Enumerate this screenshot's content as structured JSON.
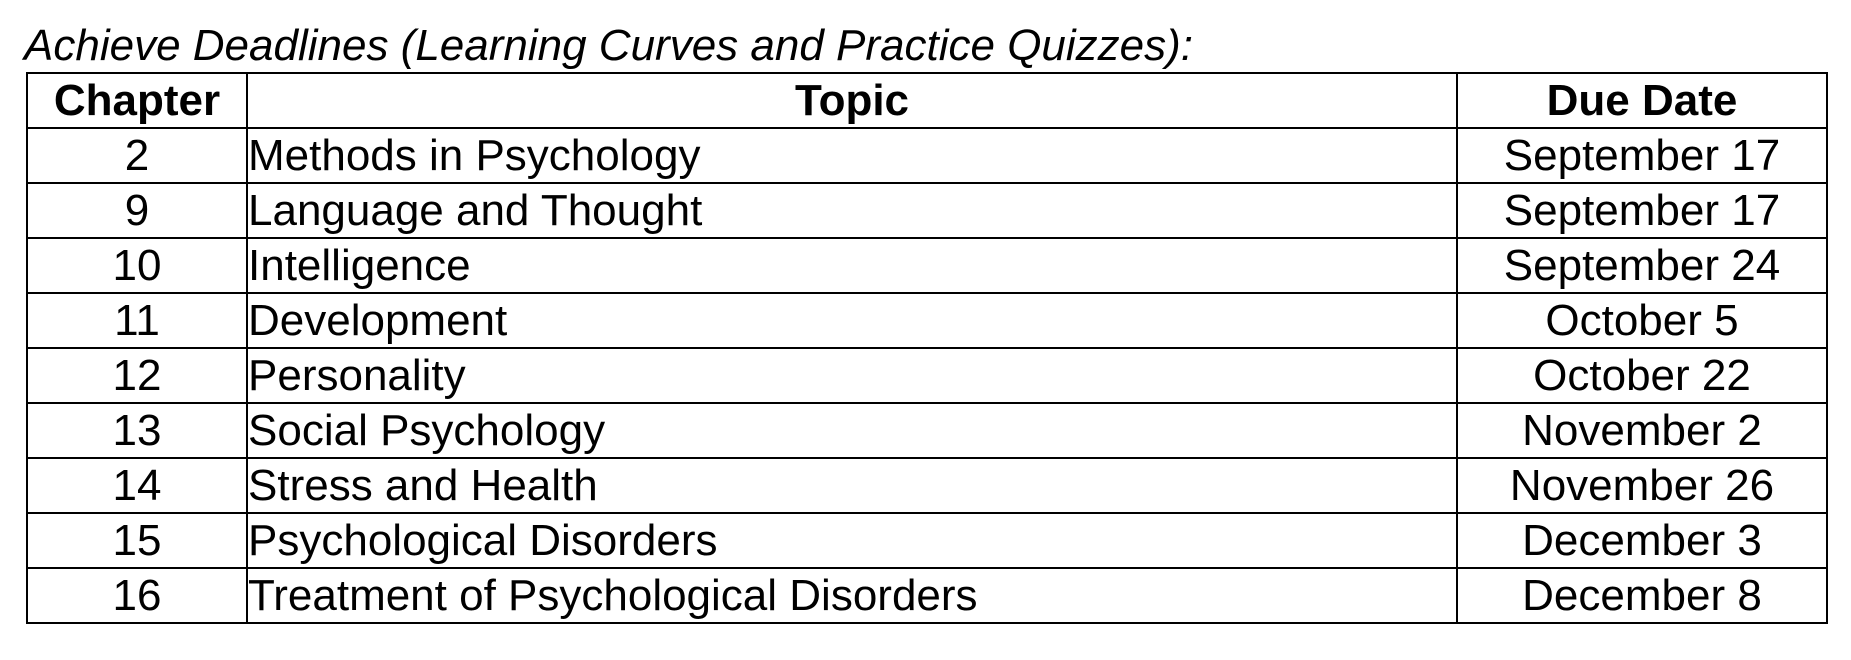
{
  "document": {
    "title": "Achieve Deadlines (Learning Curves and Practice Quizzes):"
  },
  "table": {
    "headers": {
      "chapter": "Chapter",
      "topic": "Topic",
      "due_date": "Due Date"
    },
    "rows": [
      {
        "chapter": "2",
        "topic": "Methods in Psychology",
        "due_date": "September 17"
      },
      {
        "chapter": "9",
        "topic": "Language and Thought",
        "due_date": "September 17"
      },
      {
        "chapter": "10",
        "topic": "Intelligence",
        "due_date": "September 24"
      },
      {
        "chapter": "11",
        "topic": "Development",
        "due_date": "October 5"
      },
      {
        "chapter": "12",
        "topic": "Personality",
        "due_date": "October 22"
      },
      {
        "chapter": "13",
        "topic": "Social Psychology",
        "due_date": "November 2"
      },
      {
        "chapter": "14",
        "topic": "Stress and Health",
        "due_date": "November 26"
      },
      {
        "chapter": "15",
        "topic": "Psychological Disorders",
        "due_date": "December 3"
      },
      {
        "chapter": "16",
        "topic": "Treatment of Psychological Disorders",
        "due_date": "December 8"
      }
    ]
  }
}
